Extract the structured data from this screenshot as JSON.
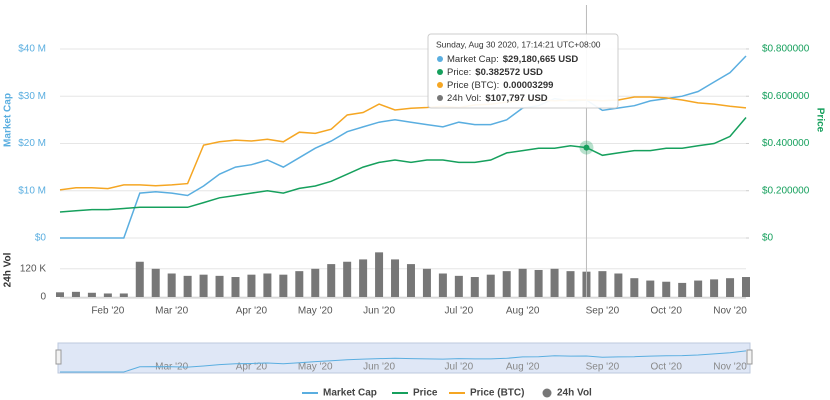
{
  "chart_data": {
    "type": "line",
    "y_label": "Market Cap",
    "y2_label": "Price",
    "vol_label": "24h Vol",
    "categories": [
      null,
      null,
      null,
      "Feb '20",
      null,
      null,
      null,
      "Mar '20",
      null,
      null,
      null,
      null,
      "Apr '20",
      null,
      null,
      null,
      "May '20",
      null,
      null,
      null,
      "Jun '20",
      null,
      null,
      null,
      null,
      "Jul '20",
      null,
      null,
      null,
      "Aug '20",
      null,
      null,
      null,
      null,
      "Sep '20",
      null,
      null,
      null,
      "Oct '20",
      null,
      null,
      null,
      "Nov '20",
      null
    ],
    "ylim": [
      0,
      49300000
    ],
    "yticks": [
      {
        "value": 0,
        "label": "$0"
      },
      {
        "value": 10000000,
        "label": "$10 M"
      },
      {
        "value": 20000000,
        "label": "$20 M"
      },
      {
        "value": 30000000,
        "label": "$30 M"
      },
      {
        "value": 40000000,
        "label": "$40 M"
      }
    ],
    "y2lim": [
      0,
      0.986
    ],
    "y2ticks": [
      {
        "value": 0,
        "label": "$0"
      },
      {
        "value": 0.2,
        "label": "$0.200000"
      },
      {
        "value": 0.4,
        "label": "$0.400000"
      },
      {
        "value": 0.6,
        "label": "$0.600000"
      },
      {
        "value": 0.8,
        "label": "$0.800000"
      }
    ],
    "y3lim": [
      0,
      5.57e-05
    ],
    "vol_lim": [
      0,
      200000
    ],
    "vol_ticks": [
      0,
      {
        "value": 120000,
        "label": "120 K"
      }
    ],
    "grid": true,
    "series": [
      {
        "name": "Market Cap",
        "color": "#5aaee0",
        "axis": "y",
        "values": [
          0,
          0,
          0,
          0,
          0,
          9500000,
          9800000,
          9500000,
          9000000,
          11000000,
          13500000,
          15000000,
          15500000,
          16500000,
          15000000,
          17000000,
          19000000,
          20500000,
          22500000,
          23500000,
          24500000,
          25000000,
          24500000,
          24000000,
          23500000,
          24500000,
          24000000,
          24000000,
          25000000,
          27500000,
          28000000,
          29500000,
          29000000,
          29180665,
          27000000,
          27500000,
          28000000,
          29000000,
          29500000,
          30000000,
          31000000,
          33000000,
          35000000,
          38500000
        ]
      },
      {
        "name": "Price",
        "color": "#16a05d",
        "axis": "y2",
        "values": [
          0.11,
          0.115,
          0.12,
          0.12,
          0.125,
          0.13,
          0.13,
          0.13,
          0.13,
          0.15,
          0.17,
          0.18,
          0.19,
          0.2,
          0.19,
          0.21,
          0.22,
          0.24,
          0.27,
          0.3,
          0.32,
          0.33,
          0.32,
          0.33,
          0.33,
          0.32,
          0.32,
          0.33,
          0.36,
          0.37,
          0.38,
          0.38,
          0.39,
          0.382572,
          0.35,
          0.36,
          0.37,
          0.37,
          0.38,
          0.38,
          0.39,
          0.4,
          0.43,
          0.51
        ]
      },
      {
        "name": "Price (BTC)",
        "color": "#f5a623",
        "axis": "y3",
        "values": [
          1.15e-05,
          1.2e-05,
          1.2e-05,
          1.18e-05,
          1.27e-05,
          1.27e-05,
          1.25e-05,
          1.27e-05,
          1.3e-05,
          2.22e-05,
          2.3e-05,
          2.34e-05,
          2.32e-05,
          2.36e-05,
          2.3e-05,
          2.53e-05,
          2.5e-05,
          2.6e-05,
          2.94e-05,
          3e-05,
          3.2e-05,
          3.06e-05,
          3.1e-05,
          3.12e-05,
          3.15e-05,
          3.12e-05,
          3.18e-05,
          3.2e-05,
          3.25e-05,
          3.3e-05,
          3.3e-05,
          3.28e-05,
          3.3e-05,
          3.299e-05,
          3.28e-05,
          3.3e-05,
          3.37e-05,
          3.37e-05,
          3.35e-05,
          3.3e-05,
          3.23e-05,
          3.2e-05,
          3.15e-05,
          3.11e-05
        ]
      },
      {
        "name": "24h Vol",
        "color": "#777777",
        "axis": "vol",
        "values": [
          20000,
          22000,
          18000,
          15000,
          15000,
          150000,
          120000,
          100000,
          90000,
          95000,
          90000,
          85000,
          95000,
          100000,
          95000,
          110000,
          120000,
          140000,
          150000,
          160000,
          190000,
          160000,
          140000,
          120000,
          100000,
          90000,
          85000,
          95000,
          110000,
          120000,
          115000,
          120000,
          110000,
          107797,
          110000,
          100000,
          80000,
          70000,
          65000,
          60000,
          70000,
          75000,
          80000,
          85000
        ]
      }
    ],
    "tooltip": {
      "date": "Sunday, Aug 30 2020, 17:14:21 UTC+08:00",
      "items": [
        {
          "label": "Market Cap:",
          "value": "$29,180,665 USD"
        },
        {
          "label": "Price:",
          "value": "$0.382572 USD"
        },
        {
          "label": "Price (BTC):",
          "value": "0.00003299"
        },
        {
          "label": "24h Vol:",
          "value": "$107,797 USD"
        }
      ]
    }
  }
}
